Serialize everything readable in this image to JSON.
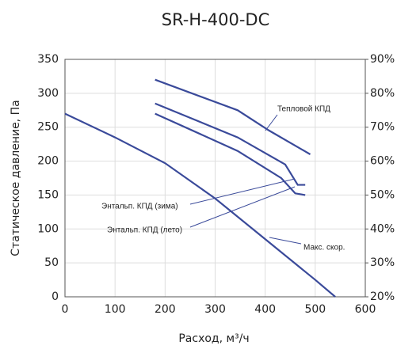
{
  "chart_data": {
    "type": "line",
    "title": "SR-H-400-DC",
    "x_label": "Расход, м³/ч",
    "y_label": "Статическое давление, Па",
    "xlim": [
      0,
      600
    ],
    "xticks": [
      0,
      100,
      200,
      300,
      400,
      500,
      600
    ],
    "ylim": [
      0,
      350
    ],
    "yticks": [
      0,
      50,
      100,
      150,
      200,
      250,
      300,
      350
    ],
    "y2lim": [
      20,
      90
    ],
    "y2ticks": [
      {
        "value": 20,
        "label": "20%"
      },
      {
        "value": 30,
        "label": "30%"
      },
      {
        "value": 40,
        "label": "40%"
      },
      {
        "value": 50,
        "label": "50%"
      },
      {
        "value": 60,
        "label": "60%"
      },
      {
        "value": 70,
        "label": "70%"
      },
      {
        "value": 80,
        "label": "80%"
      },
      {
        "value": 90,
        "label": "90%"
      }
    ],
    "grid": true,
    "series": [
      {
        "name": "Макс. скор.",
        "color": "#3a4a9a",
        "x": [
          0,
          100,
          200,
          300,
          400,
          500,
          540
        ],
        "values": [
          270,
          235,
          197,
          145,
          85,
          25,
          0
        ]
      },
      {
        "name": "Тепловой КПД",
        "color": "#3a4a9a",
        "axis": "y2",
        "x": [
          180,
          345,
          408,
          490
        ],
        "values": [
          84,
          75,
          69,
          62
        ]
      },
      {
        "name": "Энтальп. КПД (зима)",
        "color": "#3a4a9a",
        "axis": "y2",
        "x": [
          180,
          345,
          440,
          465,
          480
        ],
        "values": [
          77,
          67,
          59,
          53,
          53
        ]
      },
      {
        "name": "Энтальп. КПД (лето)",
        "color": "#3a4a9a",
        "axis": "y2",
        "x": [
          180,
          345,
          432,
          460,
          480
        ],
        "values": [
          74,
          63,
          55,
          50.5,
          50
        ]
      }
    ]
  }
}
